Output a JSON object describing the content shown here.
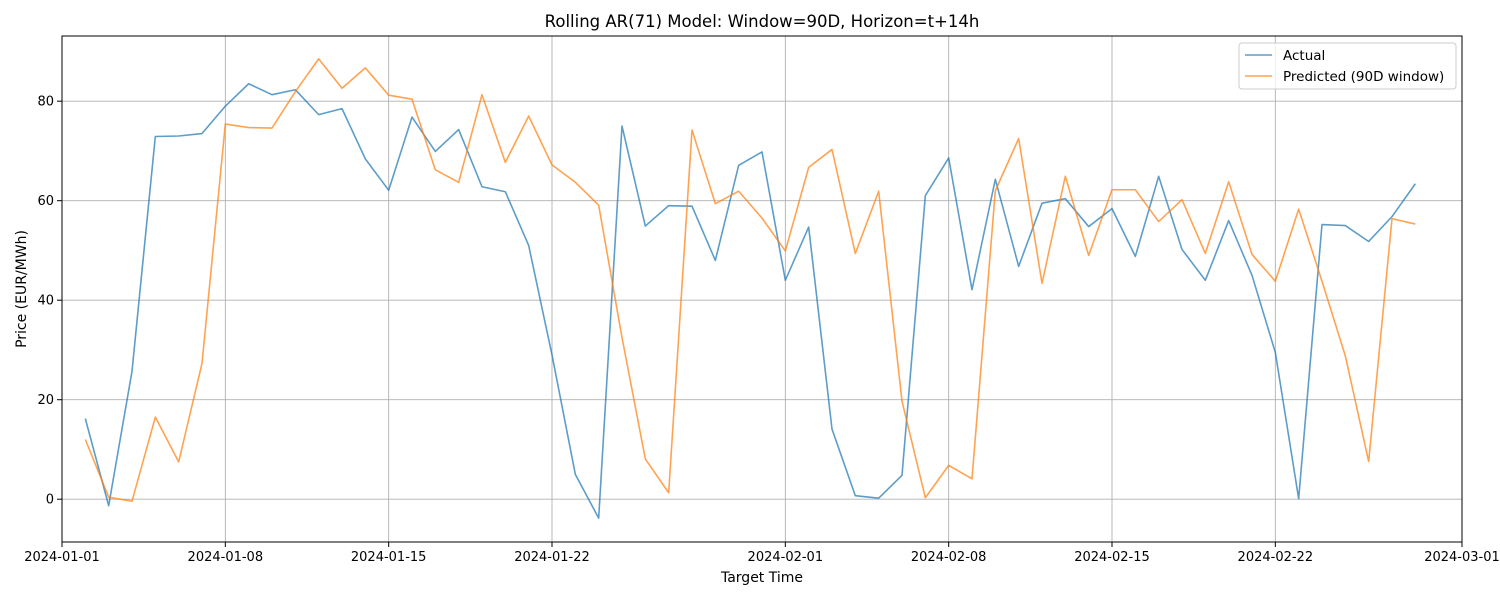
{
  "chart_data": {
    "type": "line",
    "title": "Rolling AR(71) Model: Window=90D, Horizon=t+14h",
    "xlabel": "Target Time",
    "ylabel": "Price (EUR/MWh)",
    "xlim": [
      "2024-01-01",
      "2024-03-01"
    ],
    "ylim": [
      -8.6,
      93.1
    ],
    "x_ticks": [
      "2024-01-01",
      "2024-01-08",
      "2024-01-15",
      "2024-01-22",
      "2024-02-01",
      "2024-02-08",
      "2024-02-15",
      "2024-02-22",
      "2024-03-01"
    ],
    "y_ticks": [
      0,
      20,
      40,
      60,
      80
    ],
    "grid": true,
    "legend_position": "top-right",
    "x": [
      "2024-01-02",
      "2024-01-03",
      "2024-01-04",
      "2024-01-05",
      "2024-01-06",
      "2024-01-07",
      "2024-01-08",
      "2024-01-09",
      "2024-01-10",
      "2024-01-11",
      "2024-01-12",
      "2024-01-13",
      "2024-01-14",
      "2024-01-15",
      "2024-01-16",
      "2024-01-17",
      "2024-01-18",
      "2024-01-19",
      "2024-01-20",
      "2024-01-21",
      "2024-01-22",
      "2024-01-23",
      "2024-01-24",
      "2024-01-25",
      "2024-01-26",
      "2024-01-27",
      "2024-01-28",
      "2024-01-29",
      "2024-01-30",
      "2024-01-31",
      "2024-02-01",
      "2024-02-02",
      "2024-02-03",
      "2024-02-04",
      "2024-02-05",
      "2024-02-06",
      "2024-02-07",
      "2024-02-08",
      "2024-02-09",
      "2024-02-10",
      "2024-02-11",
      "2024-02-12",
      "2024-02-13",
      "2024-02-14",
      "2024-02-15",
      "2024-02-16",
      "2024-02-17",
      "2024-02-18",
      "2024-02-19",
      "2024-02-20",
      "2024-02-21",
      "2024-02-22",
      "2024-02-23",
      "2024-02-24",
      "2024-02-25",
      "2024-02-26",
      "2024-02-27",
      "2024-02-28"
    ],
    "series": [
      {
        "name": "Actual",
        "color": "#1f77b4",
        "values": [
          16.2,
          -1.3,
          25.7,
          72.9,
          73.0,
          73.5,
          79.0,
          83.5,
          81.3,
          82.3,
          77.3,
          78.5,
          68.4,
          62.1,
          76.8,
          69.9,
          74.3,
          62.8,
          61.8,
          51.0,
          29.0,
          5.0,
          -3.8,
          75.0,
          54.9,
          59.0,
          58.9,
          48.0,
          67.1,
          69.8,
          44.0,
          54.7,
          14.1,
          0.7,
          0.2,
          4.8,
          61.0,
          68.6,
          42.1,
          64.3,
          46.8,
          59.5,
          60.4,
          54.8,
          58.4,
          48.8,
          64.9,
          50.2,
          44.0,
          56.0,
          45.0,
          29.5,
          0.1,
          55.2,
          55.0,
          51.8,
          56.8,
          63.4
        ]
      },
      {
        "name": "Predicted (90D window)",
        "color": "#ff7f0e",
        "values": [
          12.0,
          0.4,
          -0.4,
          16.5,
          7.5,
          27.3,
          75.4,
          74.7,
          74.6,
          81.9,
          88.5,
          82.6,
          86.7,
          81.2,
          80.4,
          66.2,
          63.7,
          81.3,
          67.7,
          77.0,
          67.2,
          63.7,
          59.1,
          32.5,
          8.1,
          1.3,
          74.2,
          59.4,
          61.9,
          56.5,
          49.9,
          66.7,
          70.3,
          49.4,
          61.9,
          19.7,
          0.3,
          6.8,
          4.1,
          62.0,
          72.5,
          43.4,
          64.9,
          49.0,
          62.2,
          62.2,
          55.8,
          60.2,
          49.4,
          63.8,
          49.2,
          43.8,
          58.3,
          43.8,
          28.8,
          7.6,
          56.4,
          55.3
        ]
      }
    ]
  }
}
